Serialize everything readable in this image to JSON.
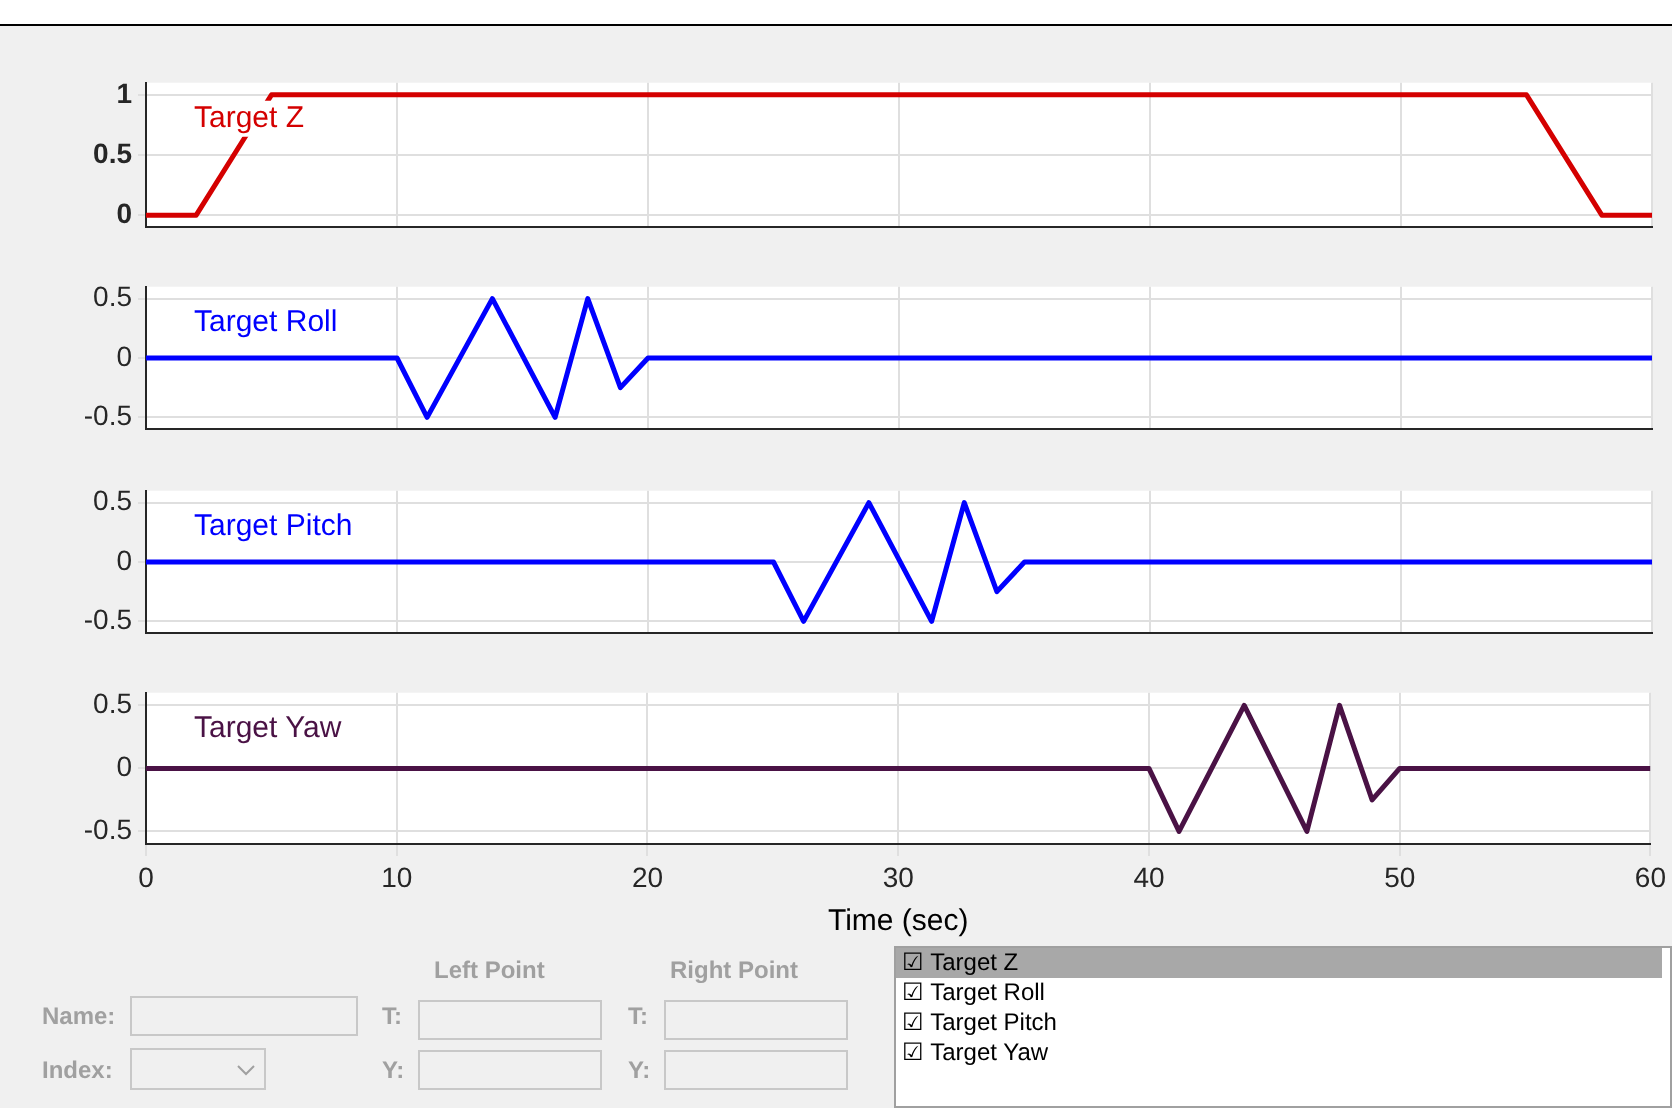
{
  "chart_data": [
    {
      "type": "line",
      "series": [
        {
          "name": "Target Z",
          "color": "#d40000",
          "x": [
            0,
            2,
            5,
            55,
            58,
            60
          ],
          "values": [
            0,
            0,
            1,
            1,
            0,
            0
          ]
        }
      ],
      "xlim": [
        0,
        60
      ],
      "xticks": [
        0,
        10,
        20,
        30,
        40,
        50,
        60
      ],
      "ylim": [
        -0.1,
        1.1
      ],
      "yticks": [
        0,
        0.5,
        1
      ],
      "grid": true,
      "tick_labels": "y"
    },
    {
      "type": "line",
      "series": [
        {
          "name": "Target Roll",
          "color": "#0000ff",
          "x": [
            0,
            10,
            11.2,
            13.8,
            16.3,
            17.6,
            18.9,
            20,
            60
          ],
          "values": [
            0,
            0,
            -0.5,
            0.5,
            -0.5,
            0.5,
            -0.25,
            0,
            0
          ]
        }
      ],
      "xlim": [
        0,
        60
      ],
      "xticks": [
        0,
        10,
        20,
        30,
        40,
        50,
        60
      ],
      "ylim": [
        -0.6,
        0.6
      ],
      "yticks": [
        -0.5,
        0,
        0.5
      ],
      "grid": true,
      "tick_labels": "y"
    },
    {
      "type": "line",
      "series": [
        {
          "name": "Target Pitch",
          "color": "#0000ff",
          "x": [
            0,
            25,
            26.2,
            28.8,
            31.3,
            32.6,
            33.9,
            35,
            60
          ],
          "values": [
            0,
            0,
            -0.5,
            0.5,
            -0.5,
            0.5,
            -0.25,
            0,
            0
          ]
        }
      ],
      "xlim": [
        0,
        60
      ],
      "xticks": [
        0,
        10,
        20,
        30,
        40,
        50,
        60
      ],
      "ylim": [
        -0.6,
        0.6
      ],
      "yticks": [
        -0.5,
        0,
        0.5
      ],
      "grid": true,
      "tick_labels": "y"
    },
    {
      "type": "line",
      "xlabel": "Time (sec)",
      "series": [
        {
          "name": "Target Yaw",
          "color": "#4a1245",
          "x": [
            0,
            40,
            41.2,
            43.8,
            46.3,
            47.6,
            48.9,
            50,
            60
          ],
          "values": [
            0,
            0,
            -0.5,
            0.5,
            -0.5,
            0.5,
            -0.25,
            0,
            0
          ]
        }
      ],
      "xlim": [
        0,
        60
      ],
      "xticks": [
        0,
        10,
        20,
        30,
        40,
        50,
        60
      ],
      "ylim": [
        -0.6,
        0.6
      ],
      "yticks": [
        -0.5,
        0,
        0.5
      ],
      "grid": true
    },
    {
      "type": "other",
      "annotations": [
        "Left Point",
        "Right Point",
        "Name:",
        "Index:",
        "T:",
        "Y:",
        "T:",
        "Y:",
        "☑ Target Z",
        "☑ Target Roll",
        "☑ Target Pitch",
        "☑ Target Yaw"
      ]
    }
  ]
}
